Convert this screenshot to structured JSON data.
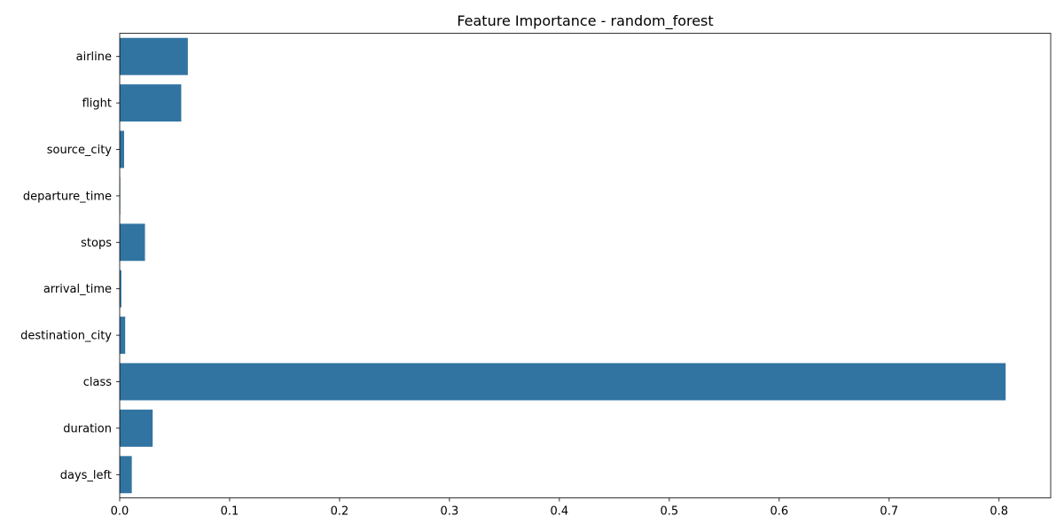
{
  "chart_data": {
    "type": "bar",
    "orientation": "horizontal",
    "title": "Feature Importance - random_forest",
    "xlabel": "",
    "ylabel": "",
    "categories": [
      "airline",
      "flight",
      "source_city",
      "departure_time",
      "stops",
      "arrival_time",
      "destination_city",
      "class",
      "duration",
      "days_left"
    ],
    "values": [
      0.062,
      0.056,
      0.004,
      0.0005,
      0.023,
      0.0015,
      0.005,
      0.806,
      0.03,
      0.011
    ],
    "xlim": [
      0,
      0.847
    ],
    "xticks": [
      0.0,
      0.1,
      0.2,
      0.3,
      0.4,
      0.5,
      0.6,
      0.7,
      0.8
    ],
    "xtick_labels": [
      "0.0",
      "0.1",
      "0.2",
      "0.3",
      "0.4",
      "0.5",
      "0.6",
      "0.7",
      "0.8"
    ],
    "grid": false,
    "legend": "none",
    "bar_color": "#3274a1"
  }
}
